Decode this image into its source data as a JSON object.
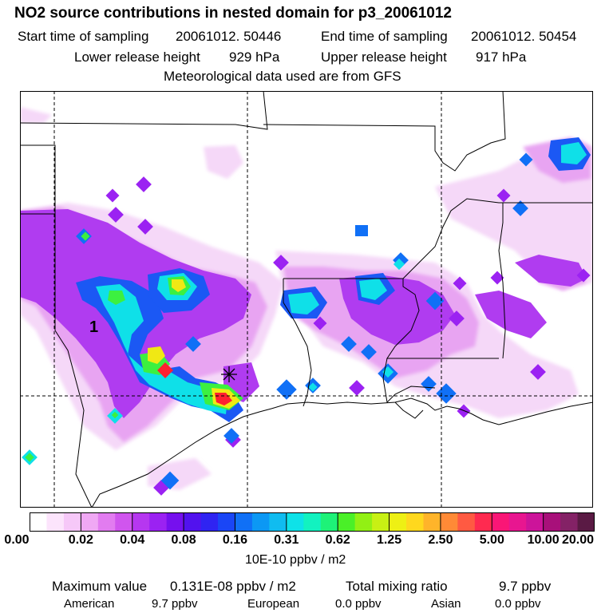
{
  "header": {
    "title": "NO2 source contributions in nested domain for p3_20061012",
    "start_label": "Start time of sampling",
    "start_value": "20061012. 50446",
    "end_label": "End time of sampling",
    "end_value": "20061012. 50454",
    "lower_label": "Lower release height",
    "lower_value": "929 hPa",
    "upper_label": "Upper release height",
    "upper_value": "917 hPa",
    "met_note": "Meteorological data used are from GFS"
  },
  "map": {
    "marker_label": "1",
    "release_marker": "star-cross"
  },
  "colorbar": {
    "ticks": [
      "0.00",
      "0.02",
      "0.04",
      "0.08",
      "0.16",
      "0.31",
      "0.62",
      "1.25",
      "2.50",
      "5.00",
      "10.00",
      "20.00"
    ],
    "colors": [
      "#ffffff",
      "#fce4fc",
      "#f6c8f8",
      "#f0a8f4",
      "#e27cf0",
      "#d055ee",
      "#b637f0",
      "#9b22f2",
      "#7610ee",
      "#5212ee",
      "#2f24f2",
      "#1a46f6",
      "#1070f6",
      "#0c98f4",
      "#10bcf0",
      "#0ee2e8",
      "#12f2c0",
      "#1ef278",
      "#4af028",
      "#92f014",
      "#c8f014",
      "#eef014",
      "#ffd81e",
      "#ffb42a",
      "#ff8a36",
      "#ff5a42",
      "#ff2a50",
      "#fa1676",
      "#e81690",
      "#cc149a",
      "#a8107a",
      "#842266",
      "#5a1a44"
    ],
    "units": "10E-10 ppbv / m2"
  },
  "footer": {
    "max_label": "Maximum value",
    "max_value": "0.131E-08 ppbv / m2",
    "total_label": "Total mixing ratio",
    "total_value": "9.7 ppbv",
    "american_label": "American",
    "american_value": "9.7 ppbv",
    "european_label": "European",
    "european_value": "0.0 ppbv",
    "asian_label": "Asian",
    "asian_value": "0.0 ppbv"
  }
}
